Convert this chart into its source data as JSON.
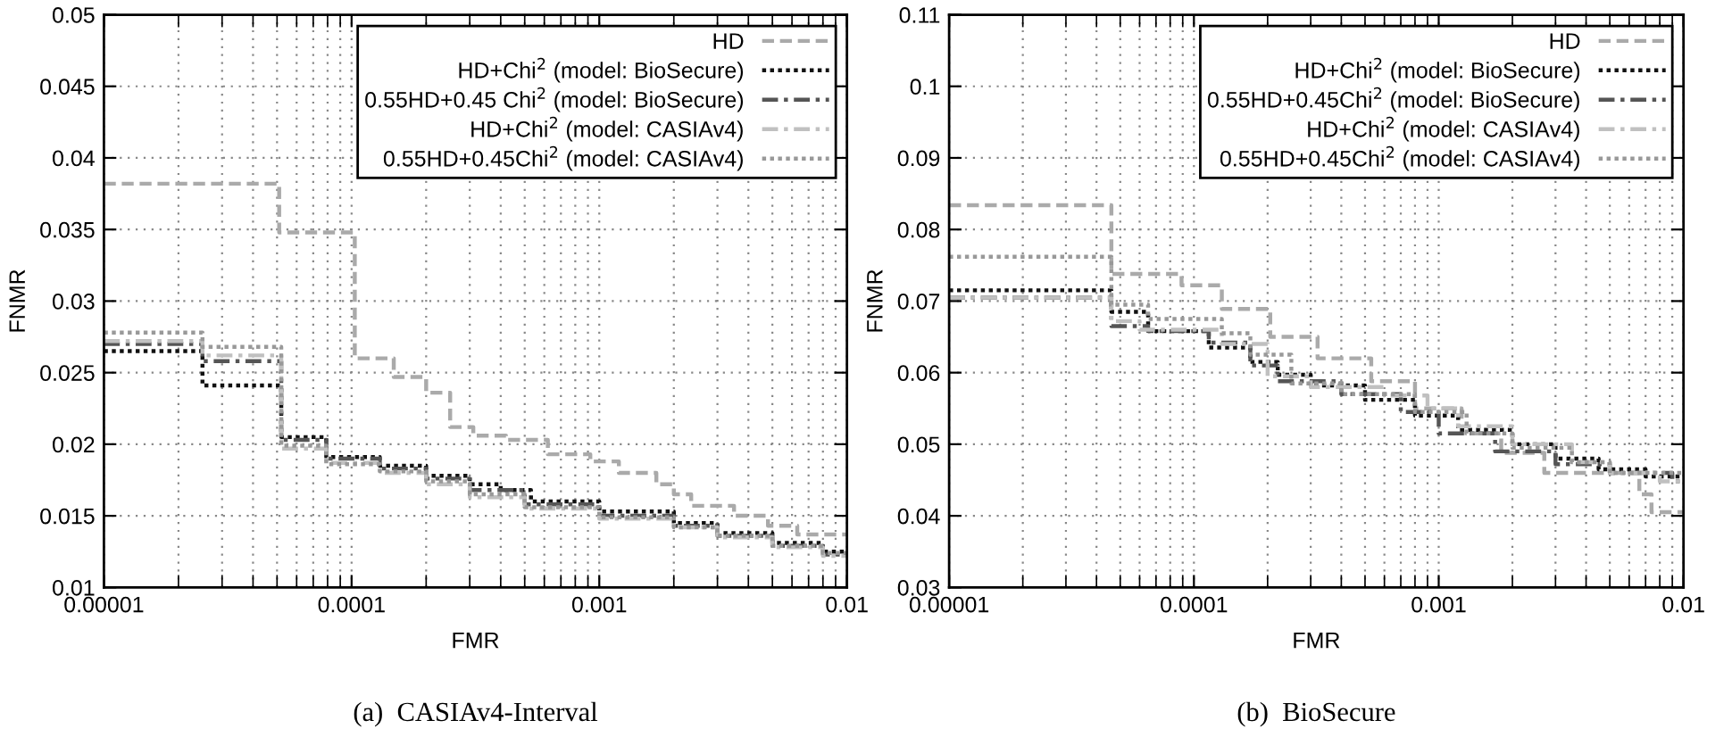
{
  "chart_data": [
    {
      "type": "step",
      "title": "(a)  CASIAv4-Interval",
      "xlabel": "FMR",
      "ylabel": "FNMR",
      "log": "x",
      "grid": true,
      "legend": "top right",
      "xlim": [
        1e-05,
        0.01
      ],
      "ylim": [
        0.01,
        0.05
      ],
      "xticks": [
        {
          "value": 1e-05,
          "label": "0.00001"
        },
        {
          "value": 2e-05,
          "label": null
        },
        {
          "value": 3e-05,
          "label": null
        },
        {
          "value": 4e-05,
          "label": null
        },
        {
          "value": 5e-05,
          "label": null
        },
        {
          "value": 6e-05,
          "label": null
        },
        {
          "value": 7e-05,
          "label": null
        },
        {
          "value": 8e-05,
          "label": null
        },
        {
          "value": 9e-05,
          "label": null
        },
        {
          "value": 0.0001,
          "label": "0.0001"
        },
        {
          "value": 0.0002,
          "label": null
        },
        {
          "value": 0.0003,
          "label": null
        },
        {
          "value": 0.0004,
          "label": null
        },
        {
          "value": 0.0005,
          "label": null
        },
        {
          "value": 0.0006,
          "label": null
        },
        {
          "value": 0.0007,
          "label": null
        },
        {
          "value": 0.0008,
          "label": null
        },
        {
          "value": 0.0009,
          "label": null
        },
        {
          "value": 0.001,
          "label": "0.001"
        },
        {
          "value": 0.002,
          "label": null
        },
        {
          "value": 0.003,
          "label": null
        },
        {
          "value": 0.004,
          "label": null
        },
        {
          "value": 0.005,
          "label": null
        },
        {
          "value": 0.006,
          "label": null
        },
        {
          "value": 0.007,
          "label": null
        },
        {
          "value": 0.008,
          "label": null
        },
        {
          "value": 0.009,
          "label": null
        },
        {
          "value": 0.01,
          "label": "0.01"
        }
      ],
      "yticks": [
        0.01,
        0.015,
        0.02,
        0.025,
        0.03,
        0.035,
        0.04,
        0.045,
        0.05
      ],
      "series": [
        {
          "name": "HD",
          "color": "#aaaaaa",
          "line_style": "dashed",
          "x": [
            1e-05,
            5.1e-05,
            0.000103,
            0.000148,
            0.0002,
            0.00025,
            0.00031,
            0.00042,
            0.00062,
            0.00092,
            0.0012,
            0.0017,
            0.002,
            0.00235,
            0.0035,
            0.0048,
            0.0063,
            0.01
          ],
          "values": [
            0.0382,
            0.0348,
            0.026,
            0.0247,
            0.0236,
            0.0212,
            0.0206,
            0.0203,
            0.0193,
            0.0188,
            0.018,
            0.0172,
            0.0165,
            0.0157,
            0.015,
            0.0143,
            0.0137,
            0.0137
          ]
        },
        {
          "name": "HD+Chi$^{2}$ (model: BioSecure)",
          "color": "#111111",
          "line_style": "dotted",
          "x": [
            1e-05,
            2.5e-05,
            5.2e-05,
            7.9e-05,
            0.00013,
            0.0002,
            0.0003,
            0.0004,
            0.00053,
            0.001,
            0.002,
            0.003,
            0.005,
            0.008,
            0.01
          ],
          "values": [
            0.0265,
            0.0241,
            0.0205,
            0.0191,
            0.0185,
            0.0178,
            0.0172,
            0.0168,
            0.016,
            0.0153,
            0.0145,
            0.0138,
            0.0131,
            0.0125,
            0.0125
          ]
        },
        {
          "name": "0.55HD+0.45 Chi$^{2}$ (model: BioSecure)",
          "color": "#555555",
          "line_style": "dashdot",
          "x": [
            1e-05,
            2.5e-05,
            5.2e-05,
            7.9e-05,
            0.00013,
            0.0002,
            0.0003,
            0.0005,
            0.001,
            0.002,
            0.003,
            0.005,
            0.008,
            0.01
          ],
          "values": [
            0.027,
            0.0258,
            0.0203,
            0.019,
            0.0183,
            0.0176,
            0.0168,
            0.0158,
            0.015,
            0.0143,
            0.0136,
            0.0129,
            0.0123,
            0.0123
          ]
        },
        {
          "name": "HD+Chi$^{2}$ (model: CASIAv4)",
          "color": "#c0c0c0",
          "line_style": "dashdot",
          "x": [
            1e-05,
            2.5e-05,
            5.2e-05,
            7.9e-05,
            0.00013,
            0.0002,
            0.0003,
            0.0005,
            0.001,
            0.002,
            0.003,
            0.005,
            0.008,
            0.01
          ],
          "values": [
            0.0272,
            0.0262,
            0.0197,
            0.0187,
            0.018,
            0.0172,
            0.0163,
            0.0155,
            0.0148,
            0.0142,
            0.0135,
            0.0128,
            0.0122,
            0.0122
          ]
        },
        {
          "name": "0.55HD+0.45Chi$^{2}$ (model: CASIAv4)",
          "color": "#999999",
          "line_style": "dotted",
          "x": [
            1e-05,
            2.5e-05,
            5.2e-05,
            7.9e-05,
            0.00013,
            0.0002,
            0.0003,
            0.0005,
            0.001,
            0.002,
            0.003,
            0.005,
            0.008,
            0.01
          ],
          "values": [
            0.0278,
            0.0268,
            0.0199,
            0.0186,
            0.0181,
            0.0174,
            0.0165,
            0.0156,
            0.0149,
            0.0142,
            0.0136,
            0.0129,
            0.0124,
            0.0124
          ]
        }
      ]
    },
    {
      "type": "step",
      "title": "(b)  BioSecure",
      "xlabel": "FMR",
      "ylabel": "FNMR",
      "log": "x",
      "grid": true,
      "legend": "top right",
      "xlim": [
        1e-05,
        0.01
      ],
      "ylim": [
        0.03,
        0.11
      ],
      "xticks": [
        {
          "value": 1e-05,
          "label": "0.00001"
        },
        {
          "value": 2e-05,
          "label": null
        },
        {
          "value": 3e-05,
          "label": null
        },
        {
          "value": 4e-05,
          "label": null
        },
        {
          "value": 5e-05,
          "label": null
        },
        {
          "value": 6e-05,
          "label": null
        },
        {
          "value": 7e-05,
          "label": null
        },
        {
          "value": 8e-05,
          "label": null
        },
        {
          "value": 9e-05,
          "label": null
        },
        {
          "value": 0.0001,
          "label": "0.0001"
        },
        {
          "value": 0.0002,
          "label": null
        },
        {
          "value": 0.0003,
          "label": null
        },
        {
          "value": 0.0004,
          "label": null
        },
        {
          "value": 0.0005,
          "label": null
        },
        {
          "value": 0.0006,
          "label": null
        },
        {
          "value": 0.0007,
          "label": null
        },
        {
          "value": 0.0008,
          "label": null
        },
        {
          "value": 0.0009,
          "label": null
        },
        {
          "value": 0.001,
          "label": "0.001"
        },
        {
          "value": 0.002,
          "label": null
        },
        {
          "value": 0.003,
          "label": null
        },
        {
          "value": 0.004,
          "label": null
        },
        {
          "value": 0.005,
          "label": null
        },
        {
          "value": 0.006,
          "label": null
        },
        {
          "value": 0.007,
          "label": null
        },
        {
          "value": 0.008,
          "label": null
        },
        {
          "value": 0.009,
          "label": null
        },
        {
          "value": 0.01,
          "label": "0.01"
        }
      ],
      "yticks": [
        0.03,
        0.04,
        0.05,
        0.06,
        0.07,
        0.08,
        0.09,
        0.1,
        0.11
      ],
      "series": [
        {
          "name": "HD",
          "color": "#aaaaaa",
          "line_style": "dashed",
          "x": [
            1e-05,
            4.6e-05,
            8.9e-05,
            0.00013,
            0.000205,
            0.00032,
            0.00053,
            0.0008,
            0.00124,
            0.0018,
            0.0027,
            0.0066,
            0.0074,
            0.01
          ],
          "values": [
            0.0834,
            0.0738,
            0.0722,
            0.0689,
            0.065,
            0.062,
            0.0588,
            0.055,
            0.0515,
            0.0488,
            0.046,
            0.043,
            0.0405,
            0.0405
          ]
        },
        {
          "name": "HD+Chi$^{2}$ (model: BioSecure)",
          "color": "#111111",
          "line_style": "dotted",
          "x": [
            1e-05,
            4.6e-05,
            6.5e-05,
            0.000115,
            0.00017,
            0.00022,
            0.0003,
            0.0005,
            0.0008,
            0.0012,
            0.002,
            0.003,
            0.0045,
            0.007,
            0.01
          ],
          "values": [
            0.0715,
            0.0685,
            0.0658,
            0.0635,
            0.0615,
            0.0597,
            0.0582,
            0.0562,
            0.054,
            0.052,
            0.05,
            0.048,
            0.0465,
            0.0455,
            0.0455
          ]
        },
        {
          "name": "0.55HD+0.45Chi$^{2}$ (model: BioSecure)",
          "color": "#555555",
          "line_style": "dashdot",
          "x": [
            1e-05,
            4.6e-05,
            6.5e-05,
            0.000115,
            0.00017,
            0.00022,
            0.0004,
            0.0007,
            0.001,
            0.0017,
            0.003,
            0.005,
            0.009,
            0.01
          ],
          "values": [
            0.0705,
            0.0665,
            0.0658,
            0.0642,
            0.061,
            0.0588,
            0.057,
            0.0545,
            0.0515,
            0.049,
            0.0472,
            0.046,
            0.0448,
            0.0448
          ]
        },
        {
          "name": "HD+Chi$^{2}$ (model: CASIAv4)",
          "color": "#c0c0c0",
          "line_style": "dashdot",
          "x": [
            1e-05,
            4.6e-05,
            6e-05,
            0.00013,
            0.0002,
            0.0003,
            0.0006,
            0.0009,
            0.0012,
            0.002,
            0.0035,
            0.005,
            0.008,
            0.01
          ],
          "values": [
            0.0705,
            0.0672,
            0.066,
            0.064,
            0.0595,
            0.058,
            0.0568,
            0.055,
            0.0525,
            0.05,
            0.0475,
            0.046,
            0.0448,
            0.0448
          ]
        },
        {
          "name": "0.55HD+0.45Chi$^{2}$ (model: CASIAv4)",
          "color": "#999999",
          "line_style": "dotted",
          "x": [
            1e-05,
            4.6e-05,
            6.5e-05,
            0.00013,
            0.00017,
            0.00025,
            0.0004,
            0.0008,
            0.0013,
            0.002,
            0.0035,
            0.005,
            0.01
          ],
          "values": [
            0.0762,
            0.0695,
            0.0675,
            0.0655,
            0.0625,
            0.0585,
            0.057,
            0.0545,
            0.0515,
            0.0495,
            0.0475,
            0.046,
            0.046
          ]
        }
      ]
    }
  ]
}
